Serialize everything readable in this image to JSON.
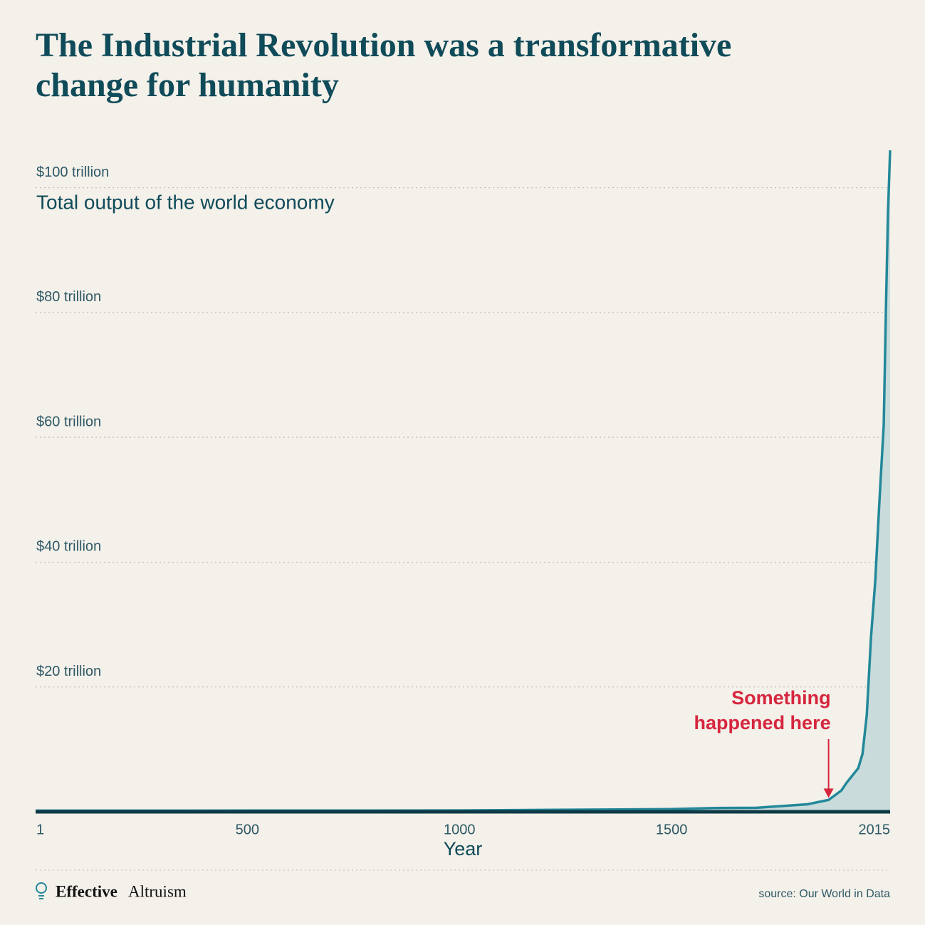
{
  "chart_data": {
    "type": "area-line",
    "title": "The Industrial Revolution was a transformative change for humanity",
    "y_label": "Total output of the world economy",
    "x_label": "Year",
    "x": [
      1,
      1000,
      1500,
      1600,
      1700,
      1820,
      1870,
      1900,
      1913,
      1940,
      1950,
      1960,
      1970,
      1980,
      1990,
      2000,
      2005,
      2010,
      2015
    ],
    "values": [
      0.18,
      0.21,
      0.43,
      0.6,
      0.64,
      1.2,
      1.9,
      3.4,
      4.7,
      7.0,
      9.3,
      15.5,
      28,
      37,
      50,
      62,
      80,
      96,
      106
    ],
    "color": "#23889a",
    "area_color": "#c9dcdb",
    "xlim": [
      1,
      2015
    ],
    "xticks": [
      1,
      500,
      1000,
      1500,
      2015
    ],
    "ylim": [
      0,
      110
    ],
    "yticks": [
      {
        "value": 20,
        "label": "$20 trillion"
      },
      {
        "value": 40,
        "label": "$40 trillion"
      },
      {
        "value": 60,
        "label": "$60 trillion"
      },
      {
        "value": 80,
        "label": "$80 trillion"
      },
      {
        "value": 100,
        "label": "$100 trillion"
      }
    ],
    "grid": true,
    "annotation": {
      "lines": [
        "Something",
        "happened here"
      ],
      "x": 1870,
      "color": "#d6263e"
    }
  },
  "footer": {
    "brand": [
      "Effective",
      "Altruism"
    ],
    "source": "source: Our World in Data"
  }
}
